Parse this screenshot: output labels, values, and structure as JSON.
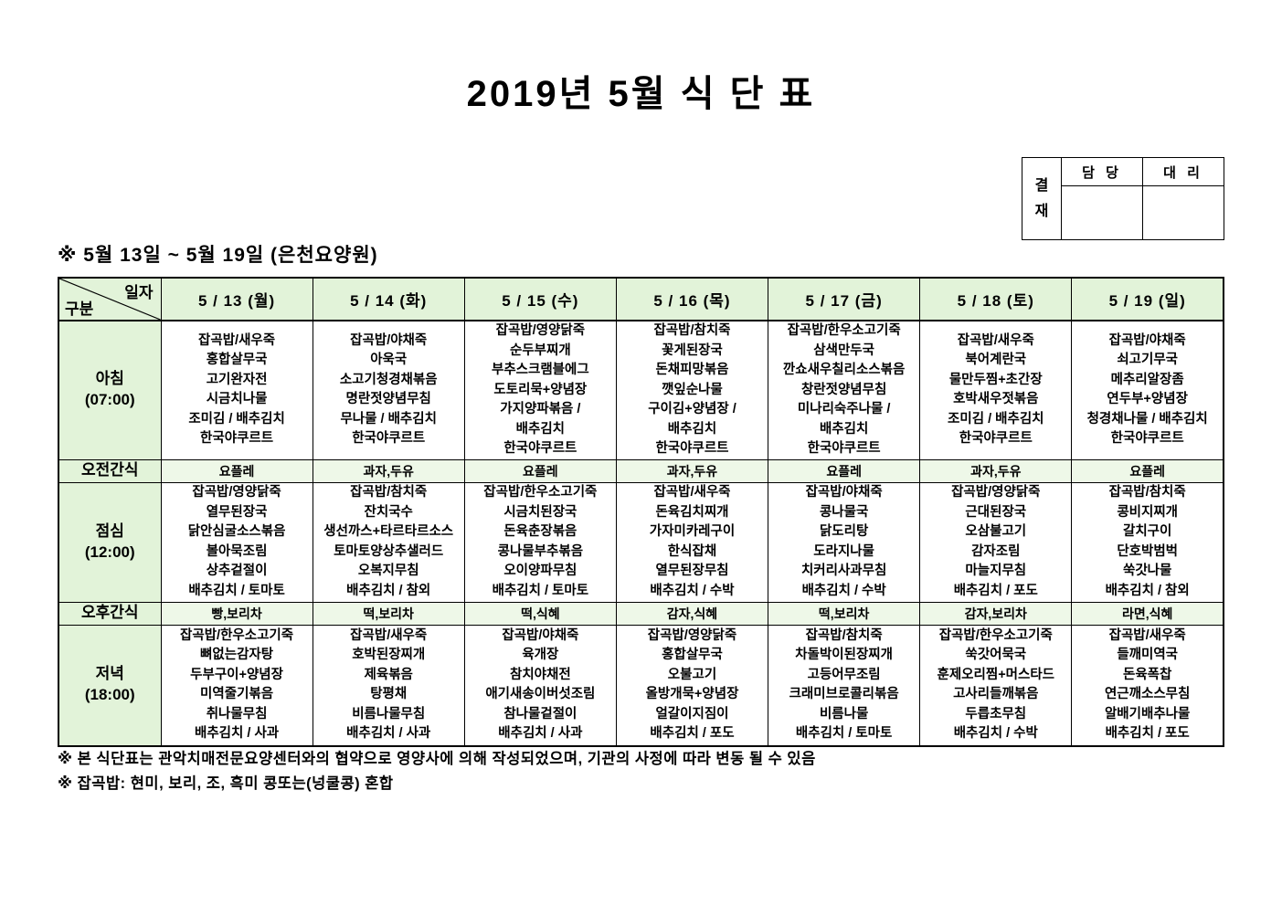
{
  "page": {
    "title": "2019년 5월 식 단 표",
    "subtitle": "※ 5월 13일 ~ 5월 19일 (은천요양원)",
    "footnote1": "※ 본 식단표는 관악치매전문요양센터와의 협약으로 영양사에 의해 작성되었으며, 기관의 사정에 따라 변동 될 수 있음",
    "footnote2": "※ 잡곡밥: 현미, 보리, 조, 흑미 콩또는(넝쿨콩) 혼합"
  },
  "approval": {
    "title": "결재",
    "col1": "담 당",
    "col2": "대 리"
  },
  "colors": {
    "cell_green": "#e2f3d9",
    "snack_green": "#eef8e8",
    "border": "#000000"
  },
  "menu": {
    "corner_top": "일자",
    "corner_bottom": "구분",
    "days": [
      "5 / 13 (월)",
      "5 / 14 (화)",
      "5 / 15 (수)",
      "5 / 16 (목)",
      "5 / 17 (금)",
      "5 / 18 (토)",
      "5 / 19 (일)"
    ],
    "rows": [
      {
        "label": "아침",
        "time": "(07:00)",
        "kind": "meal",
        "cells": [
          [
            "잡곡밥/새우죽",
            "홍합살무국",
            "고기완자전",
            "시금치나물",
            "조미김 / 배추김치",
            "한국야쿠르트"
          ],
          [
            "잡곡밥/야채죽",
            "아욱국",
            "소고기청경채볶음",
            "명란젓양념무침",
            "무나물 / 배추김치",
            "한국야쿠르트"
          ],
          [
            "잡곡밥/영양닭죽",
            "순두부찌개",
            "부추스크램블에그",
            "도토리묵+양념장",
            "가지양파볶음 /",
            "배추김치",
            "한국야쿠르트"
          ],
          [
            "잡곡밥/참치죽",
            "꽃게된장국",
            "돈채피망볶음",
            "깻잎순나물",
            "구이김+양념장 /",
            "배추김치",
            "한국야쿠르트"
          ],
          [
            "잡곡밥/한우소고기죽",
            "삼색만두국",
            "깐쇼새우칠리소스볶음",
            "창란젓양념무침",
            "미나리숙주나물 /",
            "배추김치",
            "한국야쿠르트"
          ],
          [
            "잡곡밥/새우죽",
            "북어계란국",
            "물만두찜+초간장",
            "호박새우젓볶음",
            "조미김 / 배추김치",
            "한국야쿠르트"
          ],
          [
            "잡곡밥/야채죽",
            "쇠고기무국",
            "메추리알장좀",
            "연두부+양념장",
            "청경채나물 / 배추김치",
            "한국야쿠르트"
          ]
        ]
      },
      {
        "label": "오전간식",
        "kind": "snack",
        "cells": [
          "요플레",
          "과자,두유",
          "요플레",
          "과자,두유",
          "요플레",
          "과자,두유",
          "요플레"
        ]
      },
      {
        "label": "점심",
        "time": "(12:00)",
        "kind": "meal",
        "cells": [
          [
            "잡곡밥/영양닭죽",
            "열무된장국",
            "닭안심굴소스볶음",
            "볼아묵조림",
            "상추겉절이",
            "배추김치 / 토마토"
          ],
          [
            "잡곡밥/참치죽",
            "잔치국수",
            "생선까스+타르타르소스",
            "토마토양상추샐러드",
            "오복지무침",
            "배추김치 / 참외"
          ],
          [
            "잡곡밥/한우소고기죽",
            "시금치된장국",
            "돈육춘장볶음",
            "콩나물부추볶음",
            "오이양파무침",
            "배추김치 / 토마토"
          ],
          [
            "잡곡밥/새우죽",
            "돈육김치찌개",
            "가자미카레구이",
            "한식잡채",
            "열무된장무침",
            "배추김치 / 수박"
          ],
          [
            "잡곡밥/야채죽",
            "콩나물국",
            "닭도리탕",
            "도라지나물",
            "치커리사과무침",
            "배추김치 / 수박"
          ],
          [
            "잡곡밥/영양닭죽",
            "근대된장국",
            "오삼불고기",
            "감자조림",
            "마늘지무침",
            "배추김치 / 포도"
          ],
          [
            "잡곡밥/참치죽",
            "콩비지찌개",
            "갈치구이",
            "단호박범벅",
            "쑥갓나물",
            "배추김치 / 참외"
          ]
        ]
      },
      {
        "label": "오후간식",
        "kind": "snack",
        "cells": [
          "빵,보리차",
          "떡,보리차",
          "떡,식혜",
          "감자,식혜",
          "떡,보리차",
          "감자,보리차",
          "라면,식혜"
        ]
      },
      {
        "label": "저녁",
        "time": "(18:00)",
        "kind": "meal",
        "cells": [
          [
            "잡곡밥/한우소고기죽",
            "뼈없는감자탕",
            "두부구이+양념장",
            "미역줄기볶음",
            "취나물무침",
            "배추김치 / 사과"
          ],
          [
            "잡곡밥/새우죽",
            "호박된장찌개",
            "제육볶음",
            "탕평채",
            "비름나물무침",
            "배추김치 / 사과"
          ],
          [
            "잡곡밥/야채죽",
            "육개장",
            "참치야채전",
            "애기새송이버섯조림",
            "참나물겉절이",
            "배추김치 / 사과"
          ],
          [
            "잡곡밥/영양닭죽",
            "홍합살무국",
            "오불고기",
            "올방개묵+양념장",
            "얼갈이지짐이",
            "배추김치 / 포도"
          ],
          [
            "잡곡밥/참치죽",
            "차돌박이된장찌개",
            "고등어무조림",
            "크래미브로콜리볶음",
            "비름나물",
            "배추김치 / 토마토"
          ],
          [
            "잡곡밥/한우소고기죽",
            "쑥갓어묵국",
            "훈제오리찜+머스타드",
            "고사리들깨볶음",
            "두릅초무침",
            "배추김치 / 수박"
          ],
          [
            "잡곡밥/새우죽",
            "들깨미역국",
            "돈육폭찹",
            "연근깨소스무침",
            "알배기배추나물",
            "배추김치 / 포도"
          ]
        ]
      }
    ]
  }
}
